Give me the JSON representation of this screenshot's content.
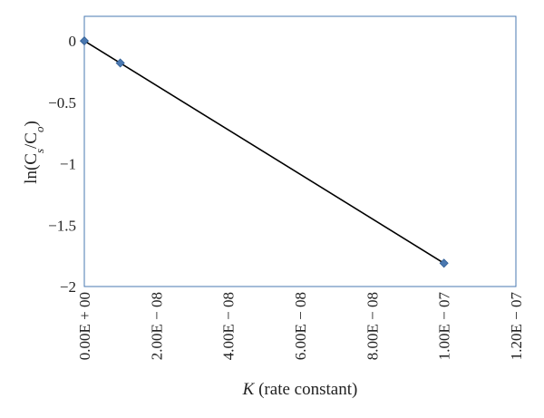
{
  "chart_data": {
    "type": "scatter",
    "title": "",
    "ylabel": "ln(C_s/C_o)",
    "xlabel": "(rate constant)",
    "xlabel_symbol": "K",
    "xlim": [
      0,
      1.2e-07
    ],
    "ylim": [
      -2,
      0.2
    ],
    "x_ticks": [
      0,
      2e-08,
      4e-08,
      6e-08,
      8e-08,
      1e-07,
      1.2e-07
    ],
    "x_tick_labels": [
      "0.00E + 00",
      "2.00E − 08",
      "4.00E − 08",
      "6.00E − 08",
      "8.00E − 08",
      "1.00E − 07",
      "1.20E − 07"
    ],
    "y_ticks": [
      0,
      -0.5,
      -1,
      -1.5,
      -2
    ],
    "y_tick_labels": [
      "0",
      "−0.5",
      "−1",
      "−1.5",
      "−2"
    ],
    "grid": false,
    "series": [
      {
        "points": [
          {
            "x": 0,
            "y": 0
          },
          {
            "x": 1e-08,
            "y": -0.18
          },
          {
            "x": 1e-07,
            "y": -1.81
          }
        ],
        "marker": "diamond",
        "color": "#4a78b0"
      }
    ],
    "trendline": {
      "from": {
        "x": 0,
        "y": 0
      },
      "to": {
        "x": 1e-07,
        "y": -1.81
      },
      "color": "#000000"
    },
    "frame_color": "#4a78b0"
  }
}
